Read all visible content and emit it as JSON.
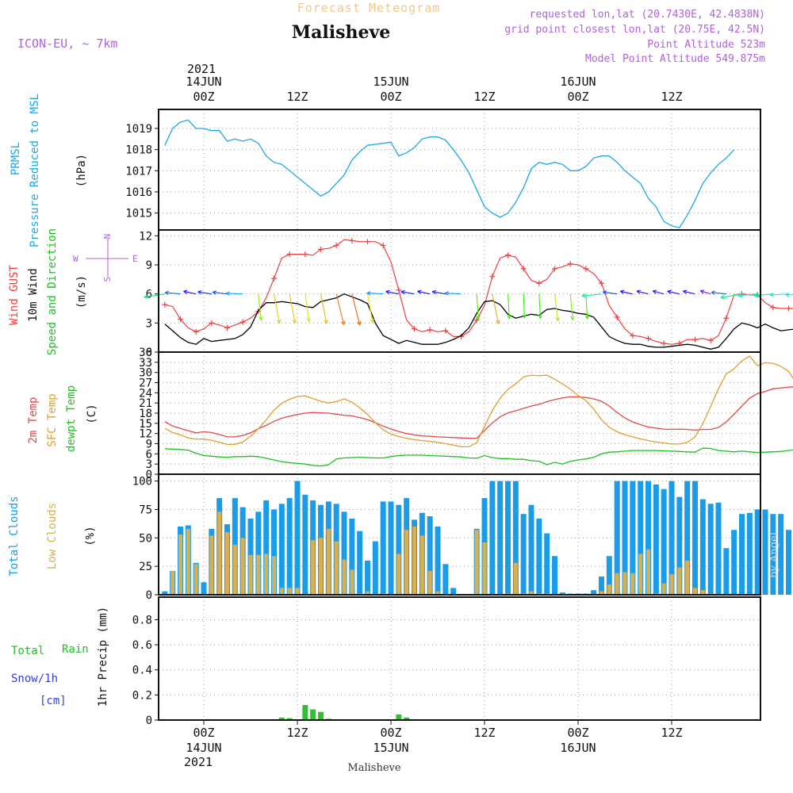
{
  "header": {
    "subtitle": "Forecast Meteogram",
    "location": "Malisheve",
    "model": "ICON-EU, ~ 7km",
    "requested": "requested lon,lat (20.7430E, 42.4838N)",
    "gridpoint": "grid point closest lon,lat (20.75E, 42.5N)",
    "point_alt": "Point Altitude 523m",
    "model_alt": "Model Point Altitude 549.875m",
    "credit": "by Angel",
    "footer": "Malisheve"
  },
  "colors": {
    "pressure": "#1ca7ec",
    "gust": "#f04040",
    "wind": "#000000",
    "t2m": "#e04848",
    "tsfc": "#e0a030",
    "dewpt": "#20c020",
    "total_clouds": "#1a9ce8",
    "low_clouds": "#d8b050",
    "rain": "#30c030",
    "snow": "#3040e0",
    "header_purple": "#b060e0",
    "subtitle_orange": "#f0c890"
  },
  "axis": {
    "top_year": "2021",
    "top_ticks": [
      {
        "h": 0,
        "label": "00Z",
        "date": "14JUN"
      },
      {
        "h": 12,
        "label": "12Z",
        "date": ""
      },
      {
        "h": 24,
        "label": "00Z",
        "date": "15JUN"
      },
      {
        "h": 36,
        "label": "12Z",
        "date": ""
      },
      {
        "h": 48,
        "label": "00Z",
        "date": "16JUN"
      },
      {
        "h": 60,
        "label": "12Z",
        "date": ""
      }
    ],
    "bottom_year": "2021"
  },
  "panel_labels": {
    "pressure": [
      "PRMSL",
      "Pressure Reduced to MSL",
      "(hPa)"
    ],
    "wind": [
      "Wind GUST",
      "10m Wind",
      "Speed and Direction",
      "(m/s)"
    ],
    "compass": {
      "n": "N",
      "s": "S",
      "w": "W",
      "e": "E"
    },
    "temp": [
      "2m Temp",
      "SFC Temp",
      "dewpt Temp",
      "(C)"
    ],
    "clouds": [
      "Total Clouds",
      "Low Clouds",
      "(%)"
    ],
    "precip": [
      "Total",
      "Rain",
      "Snow/1h",
      "[cm]",
      "1hr Precip (mm)"
    ]
  },
  "chart_data": [
    {
      "type": "line",
      "panel": "pressure",
      "ylabel": "(hPa)",
      "ylim": [
        1014.2,
        1019.9
      ],
      "yticks": [
        1015,
        1016,
        1017,
        1018,
        1019
      ],
      "x_start": -5,
      "x_step": 1,
      "series": [
        {
          "name": "PRMSL",
          "values": [
            1018.2,
            1019.0,
            1019.3,
            1019.4,
            1019.0,
            1019.0,
            1018.9,
            1018.9,
            1018.4,
            1018.5,
            1018.4,
            1018.5,
            1018.3,
            1017.7,
            1017.4,
            1017.3,
            1017.0,
            1016.7,
            1016.4,
            1016.1,
            1015.8,
            1016.0,
            1016.4,
            1016.8,
            1017.5,
            1017.9,
            1018.2,
            1018.25,
            1018.3,
            1018.35,
            1017.7,
            1017.85,
            1018.1,
            1018.5,
            1018.6,
            1018.6,
            1018.45,
            1018.0,
            1017.5,
            1016.9,
            1016.1,
            1015.3,
            1015.0,
            1014.8,
            1015.0,
            1015.5,
            1016.2,
            1017.1,
            1017.4,
            1017.3,
            1017.4,
            1017.3,
            1017.0,
            1017.0,
            1017.2,
            1017.6,
            1017.7,
            1017.7,
            1017.4,
            1017.0,
            1016.7,
            1016.4,
            1015.7,
            1015.3,
            1014.6,
            1014.4,
            1014.3,
            1014.9,
            1015.6,
            1016.4,
            1016.9,
            1017.3,
            1017.6,
            1018.0
          ]
        }
      ]
    },
    {
      "type": "line",
      "panel": "wind",
      "ylabel": "(m/s)",
      "ylim": [
        0,
        12.6
      ],
      "yticks": [
        0,
        3,
        6,
        9,
        12
      ],
      "x_start": -5,
      "x_step": 1,
      "series": [
        {
          "name": "Wind GUST",
          "values": [
            4.9,
            4.7,
            3.4,
            2.5,
            2.1,
            2.4,
            3.0,
            2.8,
            2.5,
            2.8,
            3.1,
            3.5,
            4.2,
            5.6,
            7.6,
            9.7,
            10.1,
            10.1,
            10.1,
            10.0,
            10.6,
            10.7,
            11.0,
            11.6,
            11.5,
            11.4,
            11.4,
            11.4,
            11.0,
            9.3,
            6.4,
            3.3,
            2.4,
            2.1,
            2.3,
            2.1,
            2.2,
            1.6,
            1.6,
            2.1,
            3.3,
            4.8,
            7.8,
            9.7,
            10.0,
            9.8,
            8.6,
            7.4,
            7.1,
            7.5,
            8.6,
            8.8,
            9.1,
            9.0,
            8.6,
            8.1,
            7.1,
            4.8,
            3.6,
            2.4,
            1.7,
            1.6,
            1.4,
            1.1,
            0.9,
            0.8,
            0.9,
            1.3,
            1.3,
            1.4,
            1.2,
            1.7,
            3.5,
            5.9,
            6.0,
            5.9,
            5.9,
            5.1,
            4.6,
            4.5,
            4.5,
            4.5,
            3.6,
            2.6,
            2.4,
            1.9,
            1.8,
            1.5,
            1.4
          ]
        },
        {
          "name": "10m Wind",
          "values": [
            2.9,
            2.2,
            1.5,
            1.0,
            0.8,
            1.4,
            1.1,
            1.2,
            1.3,
            1.4,
            1.8,
            2.6,
            4.3,
            5.1,
            5.1,
            5.2,
            5.1,
            5.0,
            4.7,
            4.6,
            5.2,
            5.4,
            5.6,
            6.0,
            5.7,
            5.4,
            5.0,
            3.0,
            1.7,
            1.3,
            0.9,
            1.2,
            1.0,
            0.8,
            0.8,
            0.8,
            1.0,
            1.3,
            1.7,
            2.5,
            4.0,
            5.2,
            5.3,
            4.9,
            3.9,
            3.5,
            3.7,
            3.9,
            3.8,
            4.4,
            4.5,
            4.3,
            4.2,
            4.0,
            3.9,
            3.6,
            2.6,
            1.6,
            1.2,
            0.9,
            0.8,
            0.8,
            0.6,
            0.5,
            0.5,
            0.6,
            0.7,
            0.8,
            0.7,
            0.5,
            0.3,
            0.5,
            1.4,
            2.4,
            3.0,
            2.8,
            2.5,
            2.9,
            2.5,
            2.2,
            2.3,
            2.4,
            2.3,
            1.6,
            1.4,
            1.1,
            1.0,
            0.9,
            0.8
          ]
        }
      ]
    },
    {
      "type": "line",
      "panel": "temperature",
      "ylabel": "(C)",
      "ylim": [
        0,
        36
      ],
      "yticks": [
        0,
        3,
        6,
        9,
        12,
        15,
        18,
        21,
        24,
        27,
        30,
        33,
        36
      ],
      "x_start": -5,
      "x_step": 1,
      "series": [
        {
          "name": "2m Temp",
          "values": [
            15.5,
            14.2,
            13.5,
            12.8,
            12.2,
            12.5,
            12.3,
            11.7,
            11.0,
            11.0,
            11.4,
            12.2,
            13.4,
            14.4,
            15.6,
            16.5,
            17.1,
            17.6,
            18.0,
            18.2,
            18.1,
            18.0,
            17.7,
            17.4,
            17.2,
            16.7,
            16.1,
            15.2,
            14.2,
            13.3,
            12.6,
            12.0,
            11.6,
            11.3,
            11.2,
            11.0,
            10.9,
            10.8,
            10.7,
            10.6,
            10.6,
            12.9,
            15.1,
            16.9,
            18.1,
            18.7,
            19.4,
            20.1,
            20.6,
            21.4,
            22.0,
            22.5,
            22.8,
            22.8,
            22.6,
            22.2,
            21.5,
            20.1,
            18.2,
            16.6,
            15.4,
            14.6,
            13.9,
            13.6,
            13.3,
            13.2,
            13.3,
            13.2,
            13.0,
            13.2,
            13.2,
            13.8,
            15.4,
            17.7,
            20.1,
            22.4,
            23.8,
            24.4,
            25.2,
            25.4,
            25.7,
            25.8,
            25.8,
            25.5,
            24.8,
            23.4,
            22.0,
            20.6,
            19.4,
            18.9,
            18.4,
            17.8,
            17.1
          ]
        },
        {
          "name": "SFC Temp",
          "values": [
            13.5,
            12.3,
            11.6,
            10.7,
            10.3,
            10.4,
            10.0,
            9.4,
            8.8,
            8.8,
            9.5,
            11.2,
            13.4,
            16.0,
            18.9,
            20.9,
            22.1,
            22.9,
            23.1,
            22.3,
            21.5,
            21.0,
            21.4,
            22.2,
            21.2,
            19.6,
            17.6,
            15.2,
            13.1,
            11.8,
            11.1,
            10.6,
            10.2,
            9.9,
            9.7,
            9.4,
            9.0,
            8.6,
            8.1,
            8.1,
            9.3,
            14.1,
            18.8,
            22.4,
            25.0,
            26.6,
            28.7,
            29.2,
            29.0,
            29.2,
            28.0,
            26.6,
            25.1,
            23.2,
            21.7,
            19.2,
            16.1,
            13.8,
            12.5,
            11.6,
            11.0,
            10.4,
            9.9,
            9.5,
            9.2,
            8.9,
            8.9,
            9.4,
            11.0,
            14.9,
            20.0,
            25.2,
            29.6,
            31.1,
            33.4,
            34.8,
            32.0,
            32.9,
            32.7,
            31.8,
            30.3,
            26.8,
            23.2,
            20.7,
            19.7,
            18.8,
            17.4,
            16.2,
            15.2,
            14.0
          ]
        },
        {
          "name": "dewpt Temp",
          "values": [
            7.5,
            7.4,
            7.3,
            7.1,
            6.2,
            5.5,
            5.3,
            5.1,
            5.0,
            5.2,
            5.2,
            5.3,
            5.2,
            4.7,
            4.2,
            3.7,
            3.4,
            3.2,
            3.0,
            2.6,
            2.4,
            2.8,
            4.5,
            4.8,
            4.9,
            5.0,
            4.9,
            4.8,
            4.8,
            5.2,
            5.5,
            5.6,
            5.6,
            5.6,
            5.5,
            5.4,
            5.3,
            5.2,
            5.1,
            4.8,
            4.7,
            5.5,
            4.9,
            4.6,
            4.6,
            4.4,
            4.4,
            4.0,
            3.8,
            2.8,
            3.5,
            3.0,
            3.8,
            4.2,
            4.5,
            5.0,
            6.0,
            6.5,
            6.6,
            6.8,
            7.0,
            7.0,
            7.0,
            7.0,
            6.9,
            6.8,
            6.7,
            6.6,
            6.5,
            7.7,
            7.6,
            7.0,
            6.8,
            6.6,
            6.8,
            6.6,
            6.4,
            6.5,
            6.6,
            6.7,
            7.0,
            7.3,
            7.8,
            7.9,
            8.0,
            8.0,
            8.0,
            8.0,
            8.0,
            7.9
          ]
        }
      ]
    },
    {
      "type": "bar",
      "panel": "clouds",
      "ylabel": "(%)",
      "ylim": [
        0,
        106
      ],
      "yticks": [
        0,
        25,
        50,
        75,
        100
      ],
      "x_start": -5,
      "x_step": 1,
      "series": [
        {
          "name": "Total Clouds",
          "values": [
            3,
            21,
            60,
            61,
            28,
            11,
            58,
            85,
            62,
            85,
            77,
            67,
            73,
            83,
            75,
            80,
            85,
            100,
            88,
            83,
            79,
            82,
            80,
            73,
            67,
            56,
            30,
            47,
            82,
            82,
            79,
            85,
            66,
            72,
            69,
            60,
            27,
            6,
            0,
            0,
            58,
            85,
            100,
            100,
            100,
            100,
            71,
            79,
            67,
            54,
            34,
            2,
            1,
            1,
            1,
            4,
            16,
            34,
            100,
            100,
            100,
            100,
            100,
            97,
            93,
            100,
            86,
            100,
            100,
            84,
            80,
            81,
            41,
            57,
            71,
            72,
            75,
            75,
            71,
            71,
            57,
            42,
            56,
            56
          ]
        },
        {
          "name": "Low Clouds",
          "values": [
            0,
            21,
            53,
            58,
            27,
            0,
            52,
            73,
            55,
            44,
            50,
            35,
            35,
            36,
            34,
            6,
            6,
            6,
            0,
            48,
            50,
            58,
            47,
            31,
            22,
            1,
            3,
            0,
            1,
            0,
            36,
            57,
            60,
            52,
            21,
            3,
            0,
            0,
            0,
            0,
            57,
            46,
            0,
            0,
            1,
            28,
            1,
            3,
            1,
            1,
            0,
            0,
            0,
            0,
            0,
            0,
            3,
            9,
            19,
            20,
            19,
            36,
            40,
            1,
            10,
            18,
            24,
            30,
            6,
            4,
            1,
            0,
            0,
            0,
            0,
            0,
            0,
            0,
            0,
            0,
            0,
            0,
            0,
            0
          ]
        }
      ]
    },
    {
      "type": "bar",
      "panel": "precipitation",
      "ylabel": "1hr Precip (mm)",
      "ylim": [
        0,
        0.98
      ],
      "yticks": [
        0,
        0.2,
        0.4,
        0.6,
        0.8
      ],
      "series": [
        {
          "name": "Total Rain",
          "points": [
            {
              "h": 9,
              "v": 0.005
            },
            {
              "h": 10,
              "v": 0.02
            },
            {
              "h": 11,
              "v": 0.015
            },
            {
              "h": 12,
              "v": 0.005
            },
            {
              "h": 13,
              "v": 0.12
            },
            {
              "h": 14,
              "v": 0.085
            },
            {
              "h": 15,
              "v": 0.065
            },
            {
              "h": 16,
              "v": 0.01
            },
            {
              "h": 25,
              "v": 0.045
            },
            {
              "h": 26,
              "v": 0.02
            }
          ]
        }
      ]
    }
  ]
}
